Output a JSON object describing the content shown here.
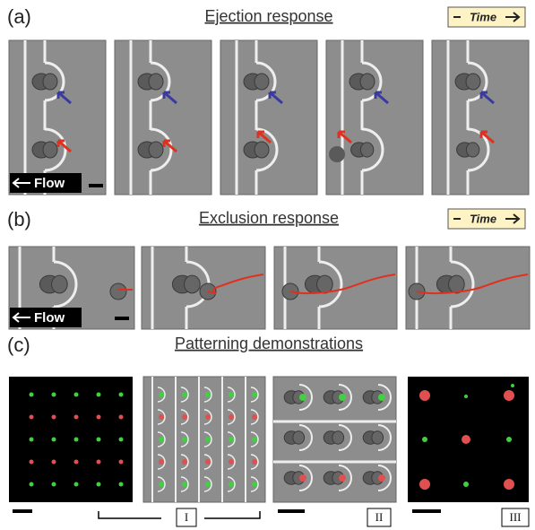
{
  "figure": {
    "panel_a": {
      "label": "(a)",
      "title": "Ejection response",
      "time_label": "Time",
      "flow_label": "Flow"
    },
    "panel_b": {
      "label": "(b)",
      "title": "Exclusion response",
      "time_label": "Time",
      "flow_label": "Flow"
    },
    "panel_c": {
      "label": "(c)",
      "title": "Patterning demonstrations",
      "markers": [
        "I",
        "II",
        "III"
      ]
    }
  }
}
